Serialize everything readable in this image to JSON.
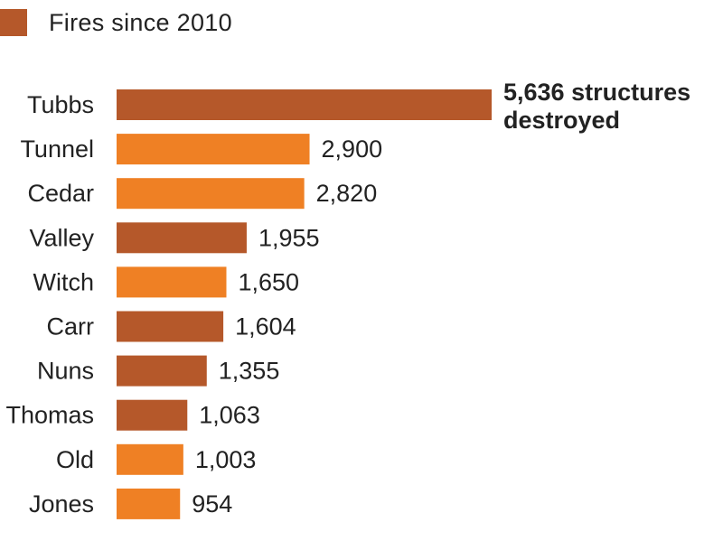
{
  "legend": {
    "label": "Fires since 2010",
    "swatch_color": "#b5582a"
  },
  "colors": {
    "since_2010": "#b5582a",
    "before_2010": "#ef8024"
  },
  "chart_data": {
    "type": "bar",
    "orientation": "horizontal",
    "title": "",
    "xlabel": "",
    "ylabel": "",
    "xlim": [
      0,
      5636
    ],
    "grid": false,
    "legend_placement": "top-left",
    "categories": [
      "Tubbs",
      "Tunnel",
      "Cedar",
      "Valley",
      "Witch",
      "Carr",
      "Nuns",
      "Thomas",
      "Old",
      "Jones"
    ],
    "values": [
      5636,
      2900,
      2820,
      1955,
      1650,
      1604,
      1355,
      1063,
      1003,
      954
    ],
    "value_labels": [
      "5,636 structures destroyed",
      "2,900",
      "2,820",
      "1,955",
      "1,650",
      "1,604",
      "1,355",
      "1,063",
      "1,003",
      "954"
    ],
    "since_2010": [
      true,
      false,
      false,
      true,
      false,
      true,
      true,
      true,
      false,
      false
    ]
  }
}
